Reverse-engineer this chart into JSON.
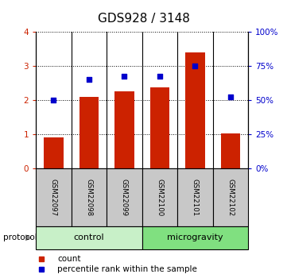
{
  "title": "GDS928 / 3148",
  "samples": [
    "GSM22097",
    "GSM22098",
    "GSM22099",
    "GSM22100",
    "GSM22101",
    "GSM22102"
  ],
  "counts": [
    0.9,
    2.1,
    2.25,
    2.38,
    3.4,
    1.02
  ],
  "percentile_ranks": [
    50,
    65,
    67.5,
    67.5,
    75,
    52
  ],
  "groups": [
    {
      "label": "control",
      "start": 0,
      "end": 3,
      "color": "#c8f0c8"
    },
    {
      "label": "microgravity",
      "start": 3,
      "end": 6,
      "color": "#80e080"
    }
  ],
  "bar_color": "#cc2200",
  "dot_color": "#0000cc",
  "left_yticks": [
    0,
    1,
    2,
    3,
    4
  ],
  "right_yticks": [
    0,
    25,
    50,
    75,
    100
  ],
  "left_ylim": [
    0,
    4
  ],
  "right_ylim": [
    0,
    100
  ],
  "legend_count_label": "count",
  "legend_pct_label": "percentile rank within the sample",
  "protocol_label": "protocol",
  "title_fontsize": 11,
  "tick_fontsize": 7.5,
  "sample_fontsize": 6.2,
  "group_fontsize": 8,
  "legend_fontsize": 7.5
}
